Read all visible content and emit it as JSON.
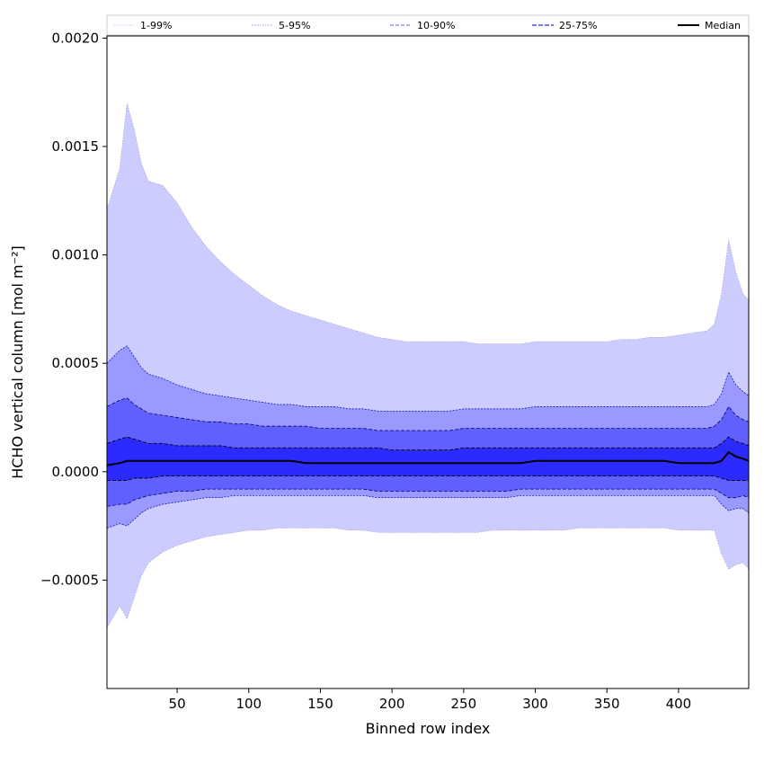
{
  "chart_data": {
    "type": "area",
    "title": "",
    "xlabel": "Binned row index",
    "ylabel": "HCHO vertical column [mol m⁻²]",
    "xlim": [
      1,
      449
    ],
    "ylim": [
      -0.001,
      0.00201
    ],
    "xticks": [
      {
        "value": 50,
        "label": "50"
      },
      {
        "value": 100,
        "label": "100"
      },
      {
        "value": 150,
        "label": "150"
      },
      {
        "value": 200,
        "label": "200"
      },
      {
        "value": 250,
        "label": "250"
      },
      {
        "value": 300,
        "label": "300"
      },
      {
        "value": 350,
        "label": "350"
      },
      {
        "value": 400,
        "label": "400"
      }
    ],
    "yticks": [
      {
        "value": -0.0005,
        "label": "−0.0005"
      },
      {
        "value": 0.0,
        "label": "0.0000"
      },
      {
        "value": 0.0005,
        "label": "0.0005"
      },
      {
        "value": 0.001,
        "label": "0.0010"
      },
      {
        "value": 0.0015,
        "label": "0.0015"
      },
      {
        "value": 0.002,
        "label": "0.0020"
      }
    ],
    "grid": false,
    "legend_position": "top",
    "colors": {
      "band_1_99": "#ccccff",
      "band_5_95": "#9999ff",
      "band_10_90": "#6060ff",
      "band_25_75": "#2b2bff",
      "median": "#000000"
    },
    "x": [
      1,
      10,
      15,
      20,
      25,
      30,
      40,
      50,
      60,
      70,
      80,
      90,
      100,
      110,
      120,
      130,
      140,
      150,
      160,
      170,
      180,
      190,
      200,
      210,
      220,
      230,
      240,
      250,
      260,
      270,
      280,
      290,
      300,
      310,
      320,
      330,
      340,
      350,
      360,
      370,
      380,
      390,
      400,
      410,
      420,
      425,
      430,
      435,
      440,
      445,
      449
    ],
    "series": [
      {
        "name": "1-99%",
        "upper": [
          0.00121,
          0.0014,
          0.0017,
          0.00158,
          0.00142,
          0.00134,
          0.00132,
          0.00124,
          0.00113,
          0.00104,
          0.00097,
          0.00091,
          0.00086,
          0.00081,
          0.00077,
          0.00074,
          0.00072,
          0.0007,
          0.00068,
          0.00066,
          0.00064,
          0.00062,
          0.00061,
          0.0006,
          0.0006,
          0.0006,
          0.0006,
          0.0006,
          0.00059,
          0.00059,
          0.00059,
          0.00059,
          0.0006,
          0.0006,
          0.0006,
          0.0006,
          0.0006,
          0.0006,
          0.00061,
          0.00061,
          0.00062,
          0.00062,
          0.00063,
          0.00064,
          0.00065,
          0.00068,
          0.00082,
          0.00107,
          0.00092,
          0.00082,
          0.00079
        ],
        "lower": [
          -0.00072,
          -0.00062,
          -0.00068,
          -0.00058,
          -0.00048,
          -0.00042,
          -0.00037,
          -0.00034,
          -0.00032,
          -0.0003,
          -0.00029,
          -0.00028,
          -0.00027,
          -0.00027,
          -0.00026,
          -0.00026,
          -0.00026,
          -0.00026,
          -0.00026,
          -0.00027,
          -0.00027,
          -0.00028,
          -0.00028,
          -0.00028,
          -0.00028,
          -0.00028,
          -0.00028,
          -0.00028,
          -0.00028,
          -0.00027,
          -0.00027,
          -0.00027,
          -0.00027,
          -0.00027,
          -0.00027,
          -0.00026,
          -0.00026,
          -0.00026,
          -0.00026,
          -0.00026,
          -0.00026,
          -0.00026,
          -0.00027,
          -0.00027,
          -0.00027,
          -0.00027,
          -0.00038,
          -0.00045,
          -0.00043,
          -0.00042,
          -0.00045
        ]
      },
      {
        "name": "5-95%",
        "upper": [
          0.0005,
          0.00056,
          0.00058,
          0.00053,
          0.00048,
          0.00045,
          0.00043,
          0.0004,
          0.00038,
          0.00036,
          0.00035,
          0.00034,
          0.00033,
          0.00032,
          0.00031,
          0.00031,
          0.0003,
          0.0003,
          0.0003,
          0.00029,
          0.00029,
          0.00028,
          0.00028,
          0.00028,
          0.00028,
          0.00028,
          0.00028,
          0.00029,
          0.00029,
          0.00029,
          0.00029,
          0.00029,
          0.0003,
          0.0003,
          0.0003,
          0.0003,
          0.0003,
          0.0003,
          0.0003,
          0.0003,
          0.0003,
          0.0003,
          0.0003,
          0.0003,
          0.0003,
          0.00031,
          0.00036,
          0.00046,
          0.0004,
          0.00037,
          0.00035
        ],
        "lower": [
          -0.00026,
          -0.00024,
          -0.00025,
          -0.00022,
          -0.00019,
          -0.00017,
          -0.00015,
          -0.00014,
          -0.00013,
          -0.00012,
          -0.00012,
          -0.00011,
          -0.00011,
          -0.00011,
          -0.00011,
          -0.00011,
          -0.00011,
          -0.00011,
          -0.00011,
          -0.00011,
          -0.00011,
          -0.00012,
          -0.00012,
          -0.00012,
          -0.00012,
          -0.00012,
          -0.00012,
          -0.00012,
          -0.00012,
          -0.00012,
          -0.00012,
          -0.00011,
          -0.00011,
          -0.00011,
          -0.00011,
          -0.00011,
          -0.00011,
          -0.00011,
          -0.00011,
          -0.00011,
          -0.00011,
          -0.00011,
          -0.00011,
          -0.00011,
          -0.00011,
          -0.00011,
          -0.00015,
          -0.00018,
          -0.00017,
          -0.00017,
          -0.00019
        ]
      },
      {
        "name": "10-90%",
        "upper": [
          0.0003,
          0.00033,
          0.00034,
          0.00031,
          0.00029,
          0.00027,
          0.00026,
          0.00025,
          0.00024,
          0.00023,
          0.00023,
          0.00022,
          0.00022,
          0.00021,
          0.00021,
          0.00021,
          0.00021,
          0.0002,
          0.0002,
          0.0002,
          0.0002,
          0.00019,
          0.00019,
          0.00019,
          0.00019,
          0.00019,
          0.00019,
          0.0002,
          0.0002,
          0.0002,
          0.0002,
          0.0002,
          0.0002,
          0.0002,
          0.0002,
          0.0002,
          0.0002,
          0.0002,
          0.0002,
          0.0002,
          0.0002,
          0.0002,
          0.0002,
          0.0002,
          0.0002,
          0.00021,
          0.00024,
          0.0003,
          0.00026,
          0.00024,
          0.00023
        ],
        "lower": [
          -0.00016,
          -0.00015,
          -0.00015,
          -0.00013,
          -0.00012,
          -0.00011,
          -0.0001,
          -9e-05,
          -9e-05,
          -8e-05,
          -8e-05,
          -8e-05,
          -8e-05,
          -8e-05,
          -8e-05,
          -8e-05,
          -8e-05,
          -8e-05,
          -8e-05,
          -8e-05,
          -8e-05,
          -9e-05,
          -9e-05,
          -9e-05,
          -9e-05,
          -9e-05,
          -9e-05,
          -9e-05,
          -9e-05,
          -9e-05,
          -9e-05,
          -8e-05,
          -8e-05,
          -8e-05,
          -8e-05,
          -8e-05,
          -8e-05,
          -8e-05,
          -8e-05,
          -8e-05,
          -8e-05,
          -8e-05,
          -8e-05,
          -8e-05,
          -8e-05,
          -8e-05,
          -0.0001,
          -0.00012,
          -0.00012,
          -0.00011,
          -0.00012
        ]
      },
      {
        "name": "25-75%",
        "upper": [
          0.00013,
          0.00015,
          0.00016,
          0.00015,
          0.00014,
          0.00013,
          0.00013,
          0.00012,
          0.00012,
          0.00012,
          0.00012,
          0.00011,
          0.00011,
          0.00011,
          0.00011,
          0.00011,
          0.00011,
          0.00011,
          0.00011,
          0.00011,
          0.00011,
          0.00011,
          0.0001,
          0.0001,
          0.0001,
          0.0001,
          0.0001,
          0.00011,
          0.00011,
          0.00011,
          0.00011,
          0.00011,
          0.00011,
          0.00011,
          0.00011,
          0.00011,
          0.00011,
          0.00011,
          0.00011,
          0.00011,
          0.00011,
          0.00011,
          0.00011,
          0.00011,
          0.00011,
          0.00011,
          0.00013,
          0.00016,
          0.00014,
          0.00013,
          0.00012
        ],
        "lower": [
          -4e-05,
          -4e-05,
          -4e-05,
          -3e-05,
          -3e-05,
          -3e-05,
          -2e-05,
          -2e-05,
          -2e-05,
          -2e-05,
          -2e-05,
          -2e-05,
          -2e-05,
          -2e-05,
          -2e-05,
          -2e-05,
          -2e-05,
          -2e-05,
          -2e-05,
          -2e-05,
          -2e-05,
          -2e-05,
          -2e-05,
          -2e-05,
          -2e-05,
          -2e-05,
          -2e-05,
          -2e-05,
          -2e-05,
          -2e-05,
          -2e-05,
          -2e-05,
          -2e-05,
          -2e-05,
          -2e-05,
          -2e-05,
          -2e-05,
          -2e-05,
          -2e-05,
          -2e-05,
          -2e-05,
          -2e-05,
          -2e-05,
          -2e-05,
          -2e-05,
          -2e-05,
          -3e-05,
          -4e-05,
          -4e-05,
          -4e-05,
          -4e-05
        ]
      },
      {
        "name": "Median",
        "values": [
          3e-05,
          4e-05,
          5e-05,
          5e-05,
          5e-05,
          5e-05,
          5e-05,
          5e-05,
          5e-05,
          5e-05,
          5e-05,
          5e-05,
          5e-05,
          5e-05,
          5e-05,
          5e-05,
          4e-05,
          4e-05,
          4e-05,
          4e-05,
          4e-05,
          4e-05,
          4e-05,
          4e-05,
          4e-05,
          4e-05,
          4e-05,
          4e-05,
          4e-05,
          4e-05,
          4e-05,
          4e-05,
          5e-05,
          5e-05,
          5e-05,
          5e-05,
          5e-05,
          5e-05,
          5e-05,
          5e-05,
          5e-05,
          5e-05,
          4e-05,
          4e-05,
          4e-05,
          4e-05,
          5e-05,
          9e-05,
          7e-05,
          6e-05,
          5e-05
        ]
      }
    ]
  }
}
